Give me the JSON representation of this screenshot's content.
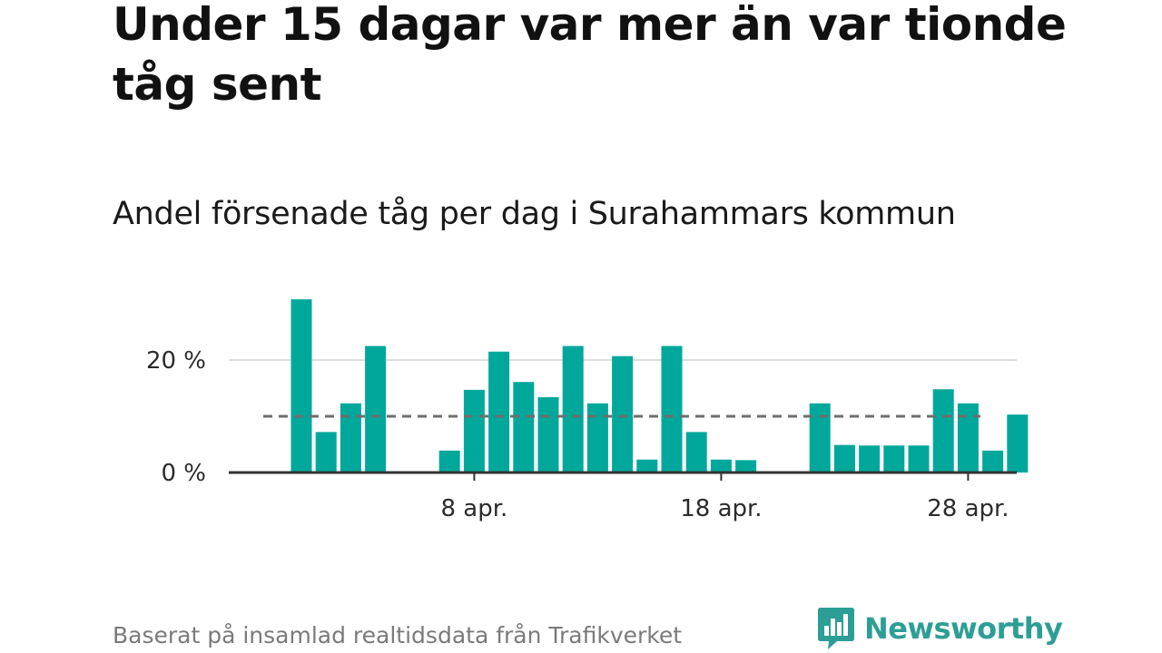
{
  "title": "Under 15 dagar var mer än var tionde tåg sent",
  "subtitle": "Andel försenade tåg per dag i Surahammars kommun",
  "footer": "Baserat på insamlad realtidsdata från Trafikverket",
  "brand": {
    "name": "Newsworthy",
    "logo_icon": "bar-chart-speech-bubble-icon"
  },
  "colors": {
    "bar": "#00a89b",
    "axis": "#333333",
    "grid": "#dddddd",
    "reference": "#6e6e6e",
    "brand": "#2d9e96"
  },
  "chart_data": {
    "type": "bar",
    "title": "Andel försenade tåg per dag i Surahammars kommun",
    "xlabel": "",
    "ylabel": "",
    "ylim": [
      0,
      30
    ],
    "grid": true,
    "reference_line": {
      "value": 10,
      "style": "dashed"
    },
    "yticks": [
      {
        "value": 0,
        "label": "0 %"
      },
      {
        "value": 20,
        "label": "20 %"
      }
    ],
    "xticks": [
      {
        "day": 8,
        "label": "8 apr."
      },
      {
        "day": 18,
        "label": "18 apr."
      },
      {
        "day": 28,
        "label": "28 apr."
      }
    ],
    "x": [
      1,
      2,
      3,
      4,
      5,
      6,
      7,
      8,
      9,
      10,
      11,
      12,
      13,
      14,
      15,
      16,
      17,
      18,
      19,
      20,
      21,
      22,
      23,
      24,
      25,
      26,
      27,
      28,
      29,
      30
    ],
    "values": [
      30.8,
      7.2,
      12.3,
      22.5,
      0,
      0,
      3.9,
      14.7,
      21.5,
      16.1,
      13.4,
      22.5,
      12.3,
      20.7,
      2.3,
      22.5,
      7.2,
      2.3,
      2.2,
      0,
      0,
      12.3,
      4.9,
      4.8,
      4.8,
      4.8,
      14.8,
      12.3,
      3.9,
      10.3
    ]
  }
}
